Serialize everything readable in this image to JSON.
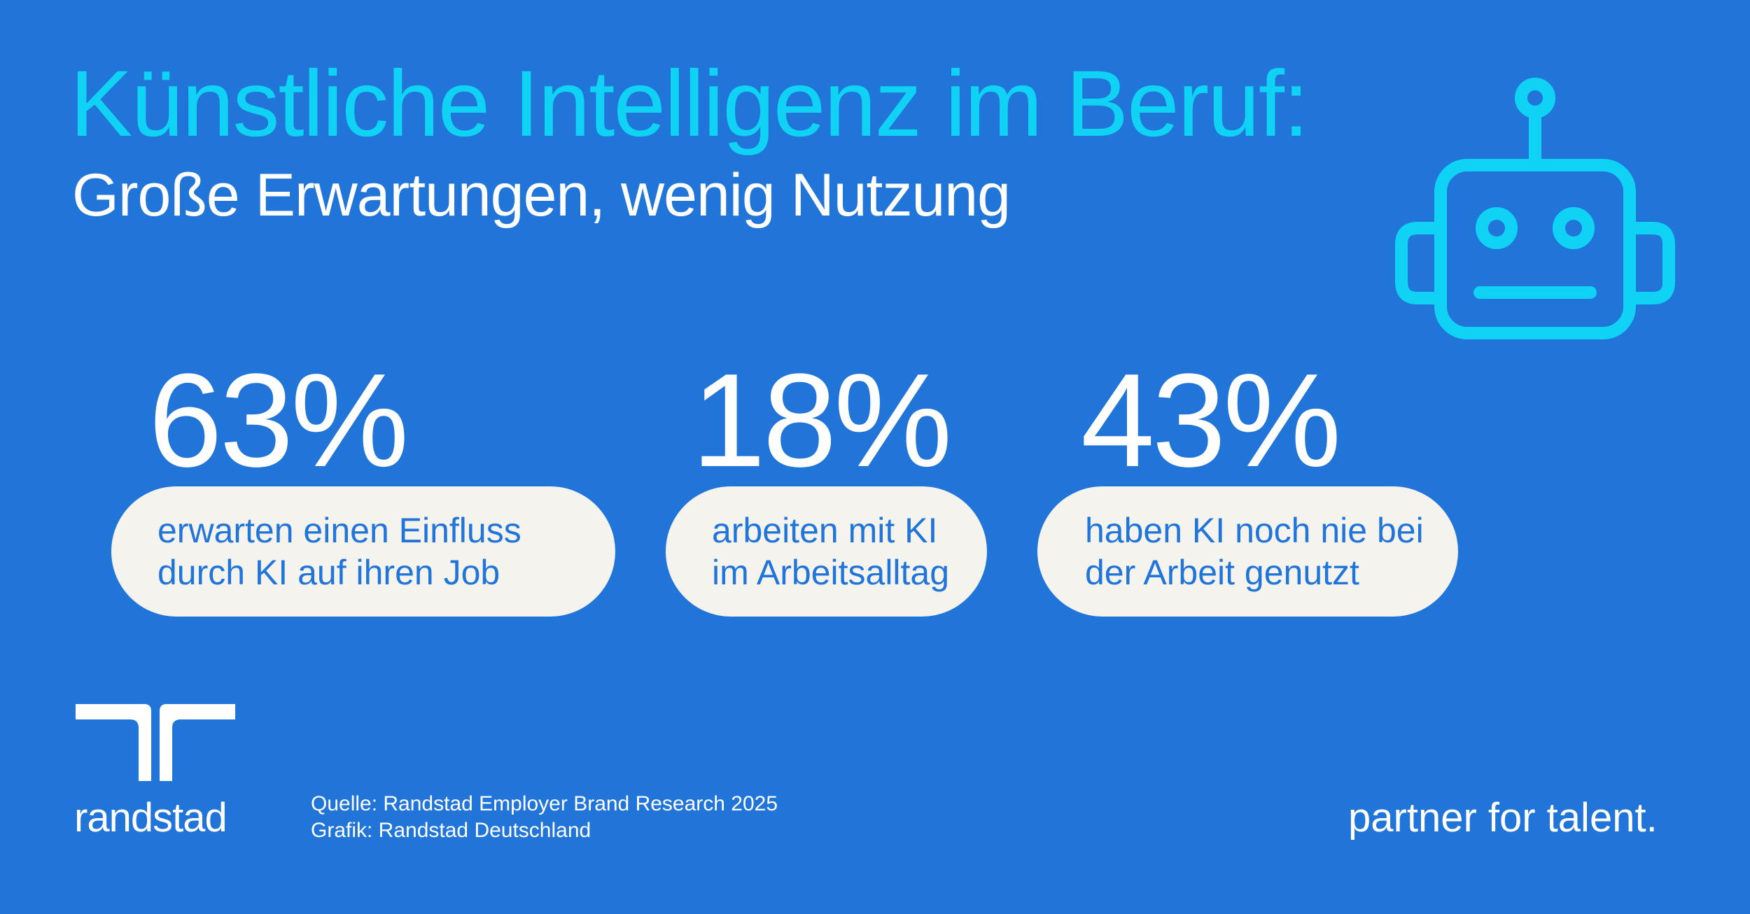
{
  "header": {
    "title": "Künstliche Intelligenz im Beruf:",
    "subtitle": "Große Erwartungen, wenig Nutzung"
  },
  "illustration": {
    "icon": "robot-icon",
    "color": "#0fd2f5"
  },
  "stats": [
    {
      "value": "63%",
      "line1": "erwarten einen Einfluss",
      "line2": "durch KI auf ihren Job"
    },
    {
      "value": "18%",
      "line1": "arbeiten mit KI",
      "line2": "im Arbeitsalltag"
    },
    {
      "value": "43%",
      "line1": "haben KI noch nie bei",
      "line2": "der Arbeit genutzt"
    }
  ],
  "footer": {
    "brand_name": "randstad",
    "source_line1": "Quelle: Randstad Employer Brand Research 2025",
    "source_line2": "Grafik: Randstad Deutschland",
    "tagline": "partner for talent."
  },
  "colors": {
    "background": "#2175d9",
    "accent": "#0fd2f5",
    "pill_background": "#f4f3ee",
    "text": "#ffffff"
  }
}
